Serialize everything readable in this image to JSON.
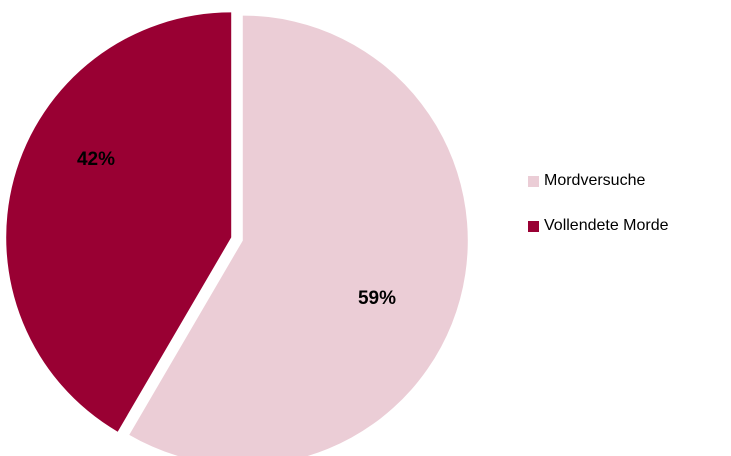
{
  "chart_data": {
    "type": "pie",
    "title": "",
    "slices": [
      {
        "name": "Mordversuche",
        "value": 59,
        "label": "59%",
        "color": "#ebcdd6"
      },
      {
        "name": "Vollendete Morde",
        "value": 42,
        "label": "42%",
        "color": "#990033"
      }
    ],
    "legend_placement": "right"
  }
}
